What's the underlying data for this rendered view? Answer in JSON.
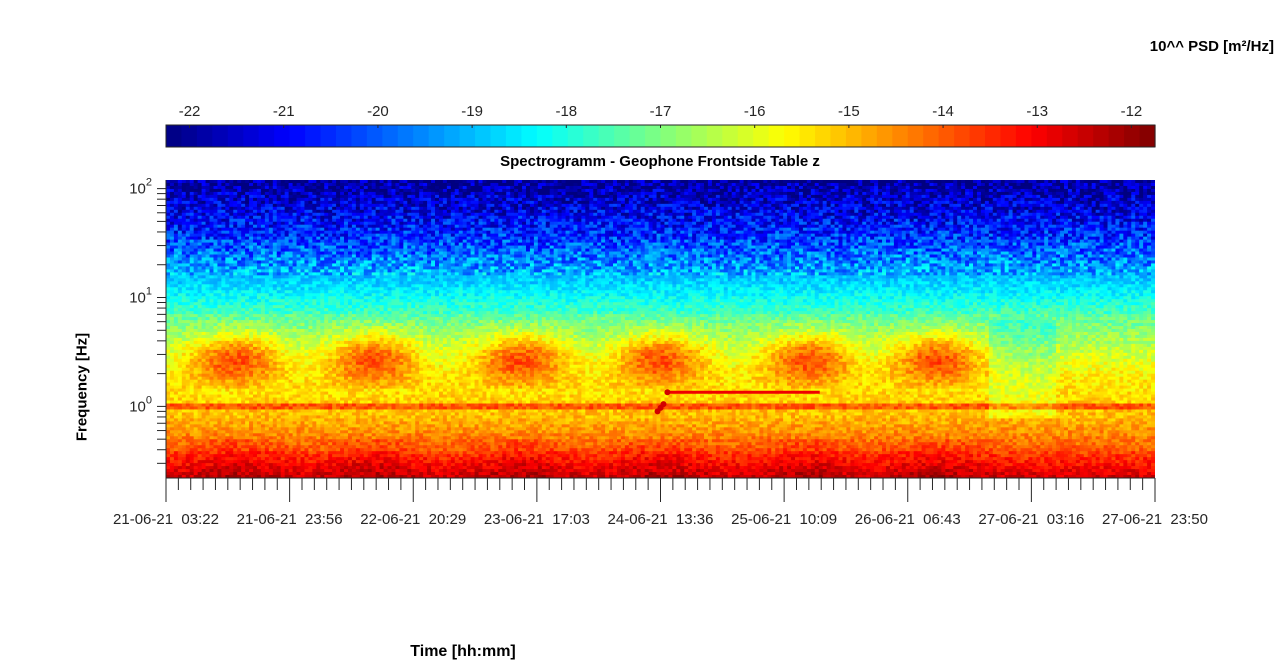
{
  "chart_data": {
    "type": "heatmap",
    "title": "Spectrogramm - Geophone Frontside Table z",
    "xlabel": "Time [hh:mm]",
    "ylabel": "Frequency [Hz]",
    "colorbar": {
      "label": "10^^ PSD [m²/Hz]",
      "colormap": "jet",
      "range": [
        -22.25,
        -11.75
      ],
      "ticks": [
        -22,
        -21,
        -20,
        -19,
        -18,
        -17,
        -16,
        -15,
        -14,
        -13,
        -12
      ],
      "position": "top"
    },
    "y_axis": {
      "scale": "log",
      "range_hz": [
        0.22,
        120
      ],
      "ticks": [
        {
          "value": 1,
          "base": "10",
          "exp": "0"
        },
        {
          "value": 10,
          "base": "10",
          "exp": "1"
        },
        {
          "value": 100,
          "base": "10",
          "exp": "2"
        }
      ]
    },
    "x_axis": {
      "tick_labels": [
        [
          "21-06-21",
          "03:22"
        ],
        [
          "21-06-21",
          "23:56"
        ],
        [
          "22-06-21",
          "20:29"
        ],
        [
          "23-06-21",
          "17:03"
        ],
        [
          "24-06-21",
          "13:36"
        ],
        [
          "25-06-21",
          "10:09"
        ],
        [
          "26-06-21",
          "06:43"
        ],
        [
          "27-06-21",
          "03:16"
        ],
        [
          "27-06-21",
          "23:50"
        ]
      ],
      "minor_ticks_per_major": 10
    },
    "features": {
      "daytime_band_hz": [
        1.5,
        6
      ],
      "daytime_bursts": 6,
      "persistent_line_hz": 1.0,
      "tonal_line": {
        "hz": 1.35,
        "description": "constant tone over ~1 day"
      }
    },
    "values": {
      "description": "Log10 PSD values vs. time and frequency",
      "low_freq_psd": -12.5,
      "mid_freq_psd": -14.5,
      "high_freq_psd": -19.5,
      "top_freq_psd": -21
    }
  }
}
